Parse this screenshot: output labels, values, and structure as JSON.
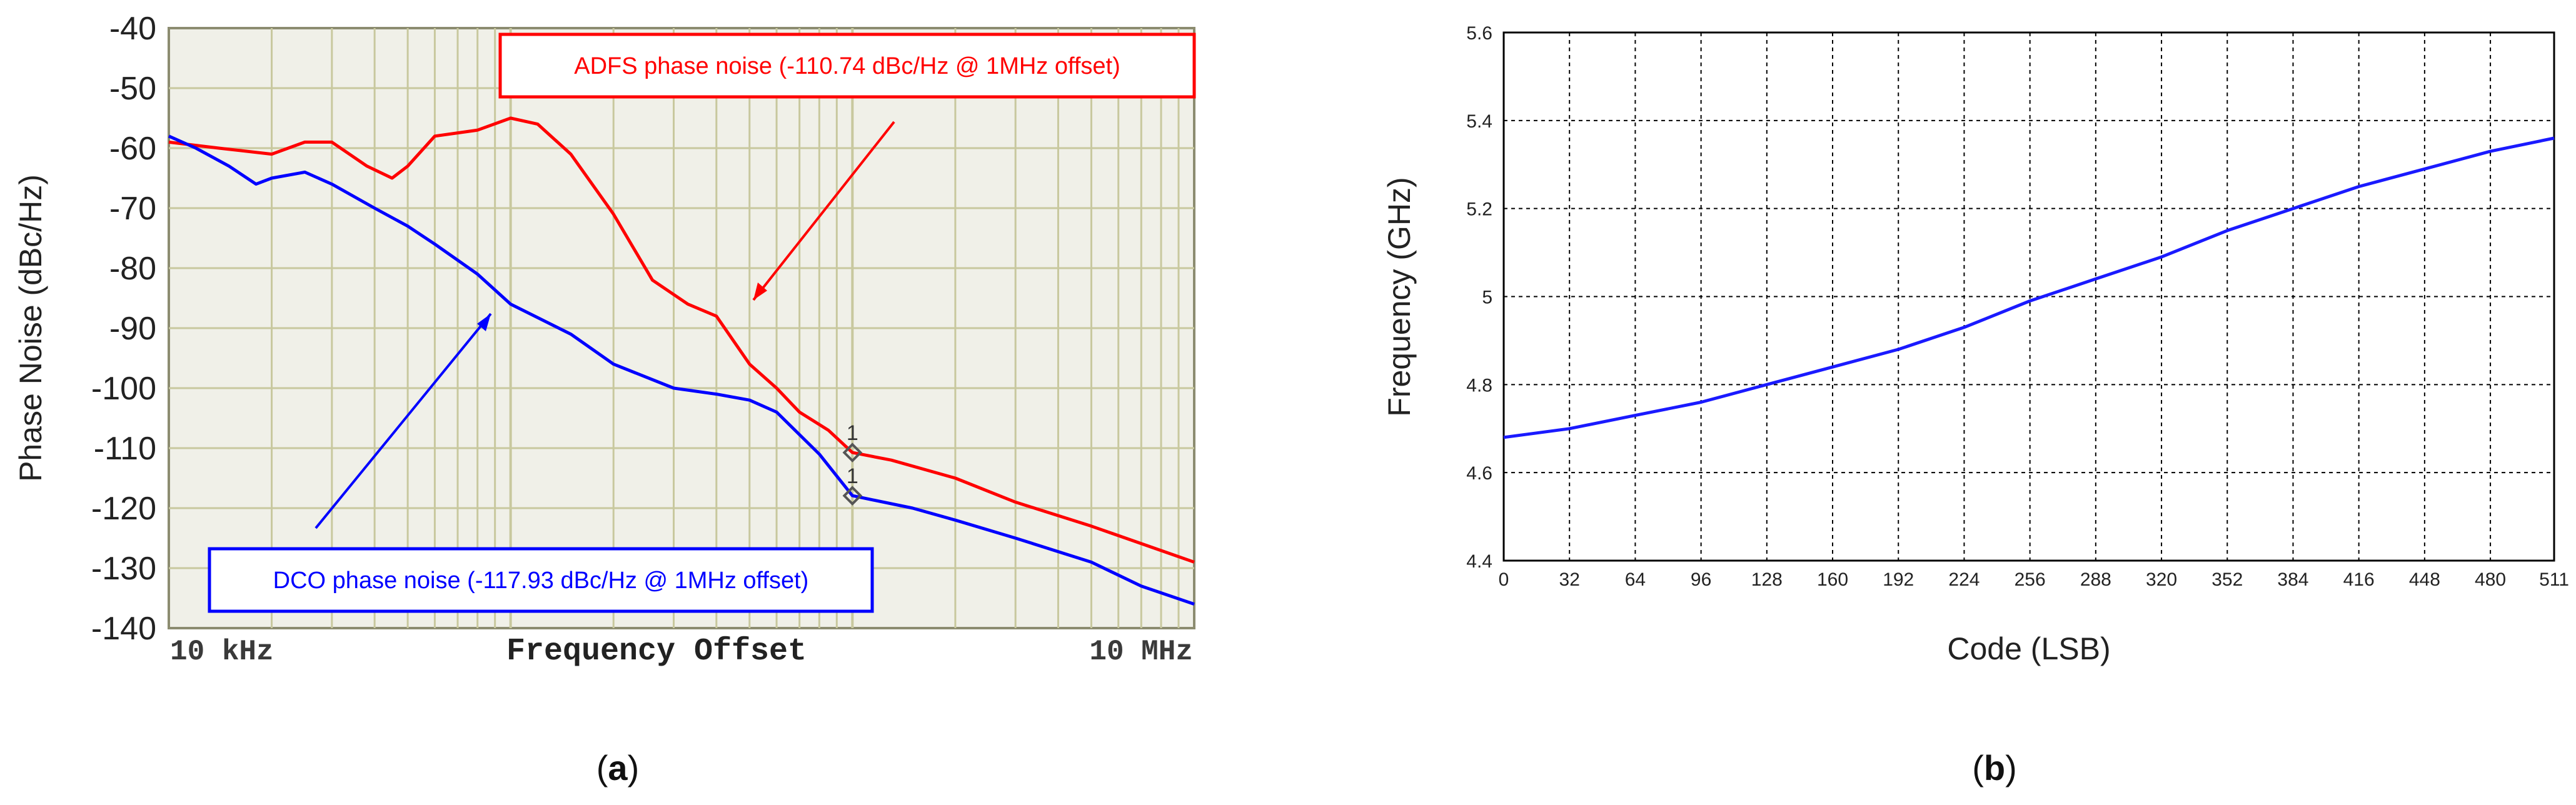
{
  "colors": {
    "panel_a_background": "#f0f0e8",
    "panel_a_grid": "#c8c89e",
    "adfs": "#ff0000",
    "dco": "#0000ff",
    "panel_b_line": "#1a1aff",
    "grid_b": "#000000"
  },
  "chart_data": [
    {
      "panel": "(a)",
      "type": "line",
      "title": "",
      "xlabel": "Frequency Offset",
      "ylabel": "Phase Noise (dBc/Hz)",
      "x_scale": "log",
      "x_unit": "Hz",
      "xlim": [
        10000,
        10000000
      ],
      "ylim": [
        -140,
        -40
      ],
      "grid": true,
      "y_ticks": [
        "-40",
        "-50",
        "-60",
        "-70",
        "-80",
        "-90",
        "-100",
        "-110",
        "-120",
        "-130",
        "-140"
      ],
      "x_tick_labels": [
        "10 kHz",
        "10 MHz"
      ],
      "series": [
        {
          "name": "ADFS phase noise (-110.74 dBc/Hz @ 1MHz offset)",
          "color": "#ff0000",
          "x": [
            10000,
            14000,
            20000,
            25000,
            30000,
            38000,
            45000,
            50000,
            60000,
            80000,
            100000,
            120000,
            150000,
            200000,
            260000,
            330000,
            400000,
            500000,
            600000,
            700000,
            850000,
            1000000,
            1300000,
            2000000,
            3000000,
            5000000,
            10000000
          ],
          "y": [
            -59,
            -60,
            -61,
            -59,
            -59,
            -63,
            -65,
            -63,
            -58,
            -57,
            -55,
            -56,
            -61,
            -71,
            -82,
            -86,
            -88,
            -96,
            -100,
            -104,
            -107,
            -110.74,
            -112,
            -115,
            -119,
            -123,
            -129
          ]
        },
        {
          "name": "DCO phase noise (-117.93 dBc/Hz @ 1MHz offset)",
          "color": "#0000ff",
          "x": [
            10000,
            12000,
            15000,
            18000,
            20000,
            25000,
            30000,
            40000,
            50000,
            60000,
            80000,
            100000,
            150000,
            200000,
            300000,
            400000,
            500000,
            600000,
            800000,
            1000000,
            1500000,
            2000000,
            3000000,
            5000000,
            7000000,
            10000000
          ],
          "y": [
            -58,
            -60,
            -63,
            -66,
            -65,
            -64,
            -66,
            -70,
            -73,
            -76,
            -81,
            -86,
            -91,
            -96,
            -100,
            -101,
            -102,
            -104,
            -111,
            -117.93,
            -120,
            -122,
            -125,
            -129,
            -133,
            -136
          ]
        }
      ],
      "annotations": [
        {
          "text": "ADFS phase noise (-110.74 dBc/Hz @ 1MHz offset)",
          "color": "#ff0000",
          "points_to": {
            "x": 450000,
            "y": -87
          }
        },
        {
          "text": "DCO phase noise (-117.93 dBc/Hz @ 1MHz offset)",
          "color": "#0000ff",
          "points_to": {
            "x": 70000,
            "y": -88
          }
        }
      ],
      "markers": [
        {
          "label": "1",
          "x": 1000000,
          "y": -110.74
        },
        {
          "label": "1",
          "x": 1000000,
          "y": -117.93
        }
      ]
    },
    {
      "panel": "(b)",
      "type": "line",
      "title": "",
      "xlabel": "Code (LSB)",
      "ylabel": "Frequency (GHz)",
      "xlim": [
        0,
        511
      ],
      "ylim": [
        4.4,
        5.6
      ],
      "grid": true,
      "x_ticks": [
        0,
        32,
        64,
        96,
        128,
        160,
        192,
        224,
        256,
        288,
        320,
        352,
        384,
        416,
        448,
        480,
        511
      ],
      "y_ticks": [
        "4.4",
        "4.6",
        "4.8",
        "5",
        "5.2",
        "5.4",
        "5.6"
      ],
      "series": [
        {
          "name": "",
          "color": "#1a1aff",
          "x": [
            0,
            32,
            64,
            96,
            128,
            160,
            192,
            224,
            256,
            288,
            320,
            352,
            384,
            416,
            448,
            480,
            511
          ],
          "y": [
            4.68,
            4.7,
            4.73,
            4.76,
            4.8,
            4.84,
            4.88,
            4.93,
            4.99,
            5.04,
            5.09,
            5.15,
            5.2,
            5.25,
            5.29,
            5.33,
            5.36
          ]
        }
      ]
    }
  ],
  "captions": {
    "a": "a",
    "b": "b"
  }
}
